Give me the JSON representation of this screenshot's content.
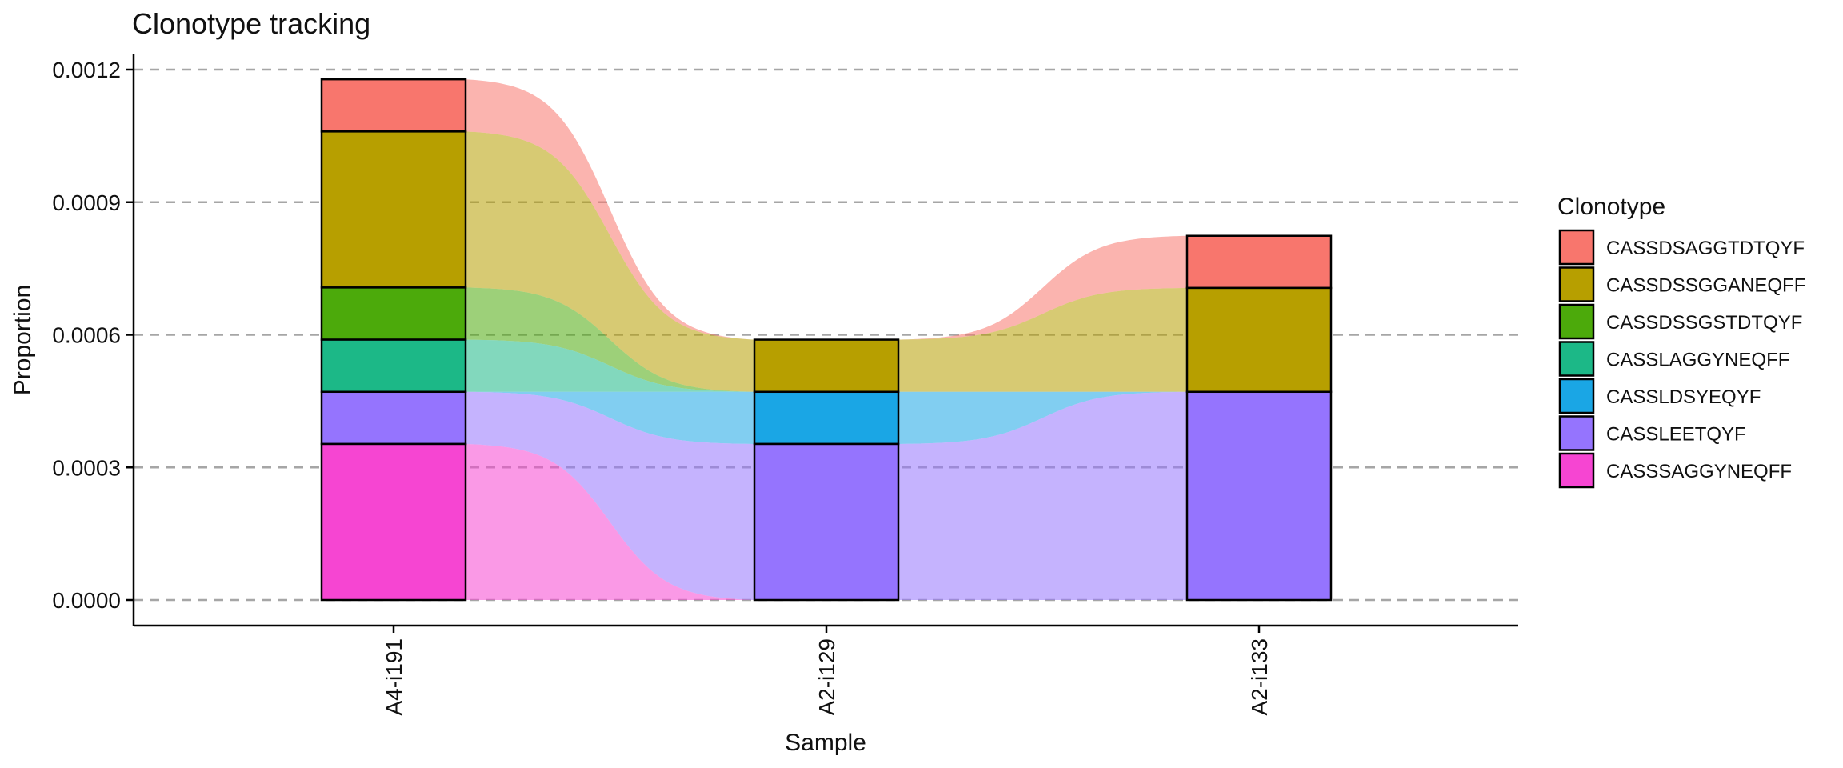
{
  "chart_data": {
    "type": "alluvial-stacked-bar",
    "title": "Clonotype tracking",
    "xlabel": "Sample",
    "ylabel": "Proportion",
    "ylim": [
      0,
      0.00126
    ],
    "yticks": [
      "0.0000",
      "0.0003",
      "0.0006",
      "0.0009",
      "0.0012"
    ],
    "ytick_values": [
      0,
      0.0003,
      0.0006,
      0.0009,
      0.0012
    ],
    "grid": "horizontal dashed",
    "legend_position": "right",
    "legend_title": "Clonotype",
    "categories": [
      "A4-i191",
      "A2-i129",
      "A2-i133"
    ],
    "series": [
      {
        "name": "CASSDSAGGTDTQYF",
        "color": "#F8766D",
        "values": [
          0.000118,
          0,
          0.000118
        ]
      },
      {
        "name": "CASSDSSGGANEQFF",
        "color": "#B79F00",
        "values": [
          0.000353,
          0.000118,
          0.000235
        ]
      },
      {
        "name": "CASSDSSGSTDTQYF",
        "color": "#4CAA0B",
        "values": [
          0.000118,
          0,
          0
        ]
      },
      {
        "name": "CASSLAGGYNEQFF",
        "color": "#1CB887",
        "values": [
          0.000118,
          0,
          0
        ]
      },
      {
        "name": "CASSLDSYEQYF",
        "color": "#1AA6E5",
        "values": [
          0,
          0.000118,
          0
        ]
      },
      {
        "name": "CASSLEETQYF",
        "color": "#9574FE",
        "values": [
          0.000118,
          0.000353,
          0.000471
        ]
      },
      {
        "name": "CASSSAGGYNEQFF",
        "color": "#F645D2",
        "values": [
          0.000353,
          0,
          0
        ]
      }
    ]
  }
}
